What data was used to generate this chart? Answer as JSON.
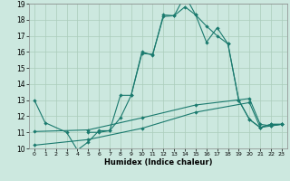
{
  "xlabel": "Humidex (Indice chaleur)",
  "xlim": [
    -0.5,
    23.5
  ],
  "ylim": [
    10,
    19
  ],
  "xticks": [
    0,
    1,
    2,
    3,
    4,
    5,
    6,
    7,
    8,
    9,
    10,
    11,
    12,
    13,
    14,
    15,
    16,
    17,
    18,
    19,
    20,
    21,
    22,
    23
  ],
  "yticks": [
    10,
    11,
    12,
    13,
    14,
    15,
    16,
    17,
    18,
    19
  ],
  "bg_color": "#cce8df",
  "grid_color": "#aaccbb",
  "line_color": "#1a7a6e",
  "line1_x": [
    0,
    1,
    3,
    4,
    5,
    6,
    7,
    8,
    9,
    10,
    11,
    12,
    13,
    14,
    15,
    16,
    17,
    18,
    19,
    20,
    21,
    22,
    23
  ],
  "line1_y": [
    13,
    11.6,
    11,
    9.9,
    10.4,
    11.1,
    11.1,
    13.3,
    13.3,
    16.0,
    15.8,
    18.3,
    18.25,
    18.8,
    18.3,
    17.6,
    17.0,
    16.5,
    13.0,
    11.8,
    11.3,
    11.5,
    11.5
  ],
  "line2_x": [
    5,
    6,
    7,
    8,
    9,
    10,
    11,
    12,
    13,
    14,
    15,
    16,
    17,
    18,
    19,
    20,
    21,
    22,
    23
  ],
  "line2_y": [
    11.0,
    11.0,
    11.1,
    11.9,
    13.3,
    15.9,
    15.85,
    18.2,
    18.25,
    19.5,
    18.3,
    16.6,
    17.5,
    16.5,
    13.0,
    11.8,
    11.3,
    11.5,
    11.5
  ],
  "line3_x": [
    0,
    5,
    10,
    15,
    20,
    21,
    22,
    23
  ],
  "line3_y": [
    10.2,
    10.55,
    11.25,
    12.25,
    12.85,
    11.3,
    11.4,
    11.5
  ],
  "line4_x": [
    0,
    5,
    10,
    15,
    20,
    21,
    22,
    23
  ],
  "line4_y": [
    11.05,
    11.15,
    11.9,
    12.7,
    13.1,
    11.5,
    11.4,
    11.5
  ]
}
